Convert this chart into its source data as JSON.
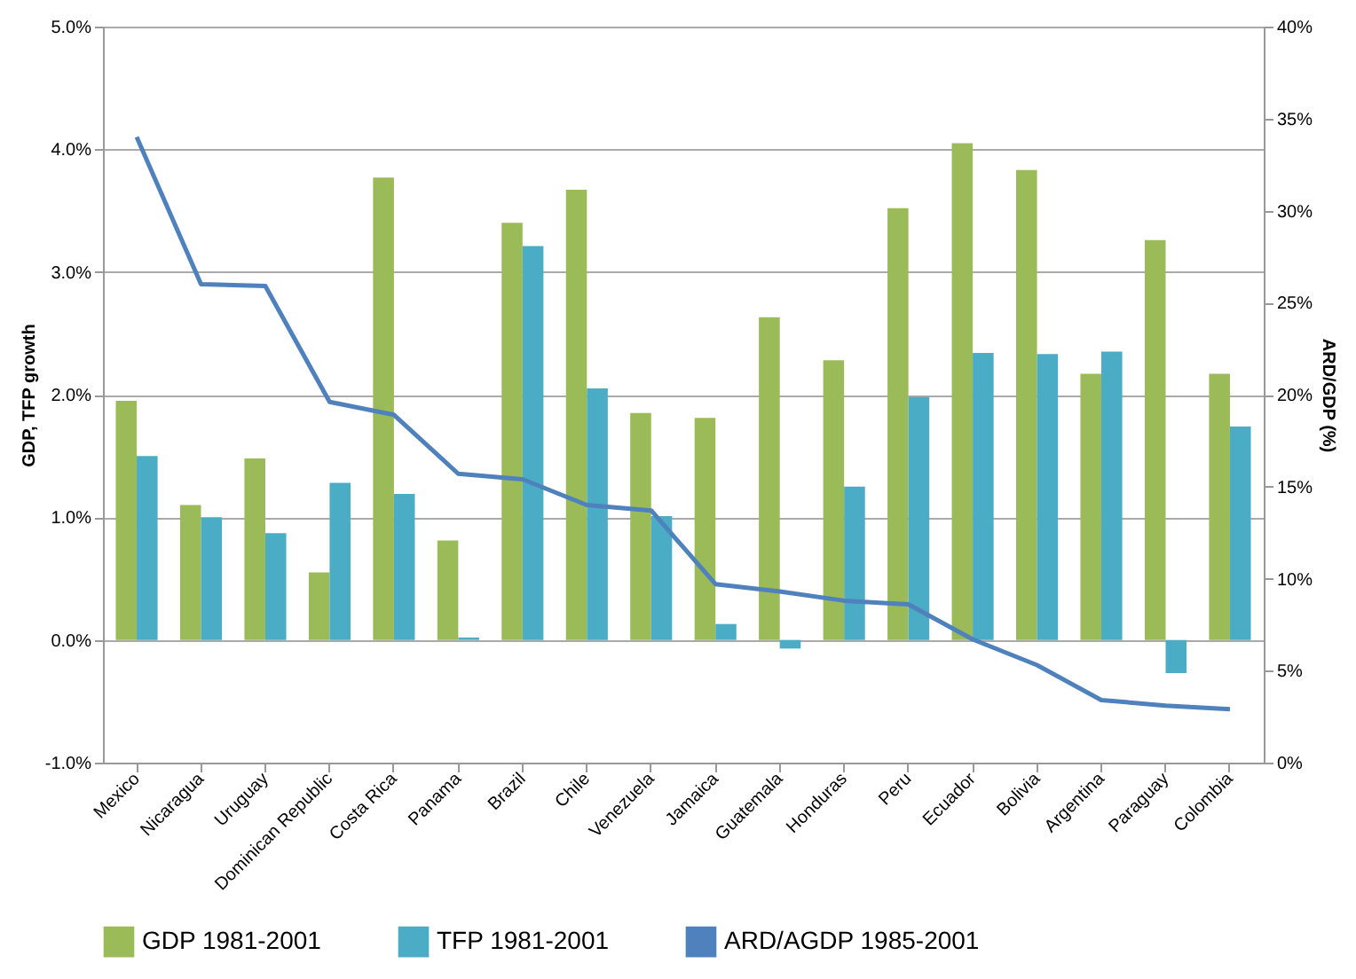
{
  "chart_data": {
    "type": "bar",
    "ylabel": "GDP, TFP growth",
    "y2label": "ARD/GDP (%)",
    "categories": [
      "Mexico",
      "Nicaragua",
      "Uruguay",
      "Dominican Republic",
      "Costa Rica",
      "Panama",
      "Brazil",
      "Chile",
      "Venezuela",
      "Jamaica",
      "Guatemala",
      "Honduras",
      "Peru",
      "Ecuador",
      "Bolivia",
      "Argentina",
      "Paraguay",
      "Colombia"
    ],
    "series": [
      {
        "name": "GDP 1981-2001",
        "type": "bar",
        "color": "#9bbb59",
        "values": [
          1.95,
          1.1,
          1.48,
          0.55,
          3.77,
          0.81,
          3.4,
          3.67,
          1.85,
          1.81,
          2.63,
          2.28,
          3.52,
          4.05,
          3.83,
          2.17,
          3.26,
          2.17
        ]
      },
      {
        "name": "TFP 1981-2001",
        "type": "bar",
        "color": "#4bacc6",
        "values": [
          1.5,
          1.0,
          0.87,
          1.28,
          1.19,
          0.02,
          3.21,
          2.05,
          1.01,
          0.13,
          -0.07,
          1.25,
          1.98,
          2.34,
          2.33,
          2.35,
          -0.27,
          1.74
        ]
      },
      {
        "name": "ARD/AGDP 1985-2001",
        "type": "line",
        "axis": "y2",
        "color": "#4f81bd",
        "values": [
          34.0,
          26.0,
          25.9,
          19.6,
          18.9,
          15.7,
          15.4,
          14.0,
          13.7,
          9.7,
          9.3,
          8.8,
          8.6,
          6.7,
          5.3,
          3.4,
          3.1,
          2.9
        ]
      }
    ],
    "ylim": [
      -1,
      5
    ],
    "yticks": [
      {
        "value": -1,
        "label": "-1.0%"
      },
      {
        "value": 0,
        "label": "0.0%"
      },
      {
        "value": 1,
        "label": "1.0%"
      },
      {
        "value": 2,
        "label": "2.0%"
      },
      {
        "value": 3,
        "label": "3.0%"
      },
      {
        "value": 4,
        "label": "4.0%"
      },
      {
        "value": 5,
        "label": "5.0%"
      }
    ],
    "y2lim": [
      0,
      40
    ],
    "y2ticks": [
      {
        "value": 0,
        "label": "0%"
      },
      {
        "value": 5,
        "label": "5%"
      },
      {
        "value": 10,
        "label": "10%"
      },
      {
        "value": 15,
        "label": "15%"
      },
      {
        "value": 20,
        "label": "20%"
      },
      {
        "value": 25,
        "label": "25%"
      },
      {
        "value": 30,
        "label": "30%"
      },
      {
        "value": 35,
        "label": "35%"
      },
      {
        "value": 40,
        "label": "40%"
      }
    ],
    "grid": "y",
    "legend": "bottom",
    "marker": "none",
    "line_style": "solid"
  }
}
